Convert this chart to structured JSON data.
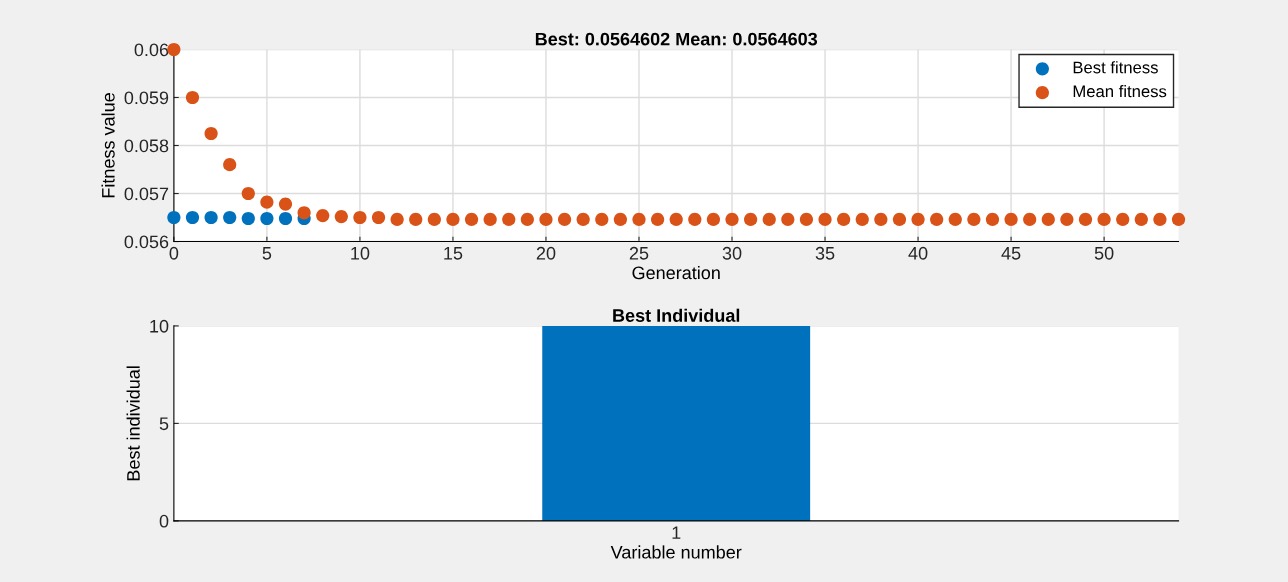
{
  "chart_data": [
    {
      "type": "scatter",
      "title": "Best: 0.0564602 Mean: 0.0564603",
      "xlabel": "Generation",
      "ylabel": "Fitness value",
      "x": [
        0,
        1,
        2,
        3,
        4,
        5,
        6,
        7,
        8,
        9,
        10,
        11,
        12,
        13,
        14,
        15,
        16,
        17,
        18,
        19,
        20,
        21,
        22,
        23,
        24,
        25,
        26,
        27,
        28,
        29,
        30,
        31,
        32,
        33,
        34,
        35,
        36,
        37,
        38,
        39,
        40,
        41,
        42,
        43,
        44,
        45,
        46,
        47,
        48,
        49,
        50,
        51,
        52,
        53,
        54
      ],
      "series": [
        {
          "name": "Best fitness",
          "color": "#0072bd",
          "values": [
            0.0565,
            0.0565,
            0.0565,
            0.0565,
            0.05648,
            0.05648,
            0.05648,
            0.05648,
            null,
            null,
            null,
            null,
            null,
            null,
            null,
            null,
            null,
            null,
            null,
            null,
            null,
            null,
            null,
            null,
            null,
            null,
            null,
            null,
            null,
            null,
            null,
            null,
            null,
            null,
            null,
            null,
            null,
            null,
            null,
            null,
            null,
            null,
            null,
            null,
            null,
            null,
            null,
            null,
            null,
            null,
            null,
            null,
            null,
            null,
            null
          ]
        },
        {
          "name": "Mean fitness",
          "color": "#d95319",
          "values": [
            0.06,
            0.059,
            0.05825,
            0.0576,
            0.057,
            0.05682,
            0.05678,
            0.0566,
            0.05654,
            0.05652,
            0.0565,
            0.0565,
            0.05646,
            0.05646,
            0.05646,
            0.05646,
            0.05646,
            0.05646,
            0.05646,
            0.05646,
            0.05646,
            0.05646,
            0.05646,
            0.05646,
            0.05646,
            0.05646,
            0.05646,
            0.05646,
            0.05646,
            0.05646,
            0.05646,
            0.05646,
            0.05646,
            0.05646,
            0.05646,
            0.05646,
            0.05646,
            0.05646,
            0.05646,
            0.05646,
            0.05646,
            0.05646,
            0.05646,
            0.05646,
            0.05646,
            0.05646,
            0.05646,
            0.05646,
            0.05646,
            0.05646,
            0.05646,
            0.05646,
            0.05646,
            0.05646,
            0.05646
          ]
        }
      ],
      "xlim": [
        0,
        54
      ],
      "xticks": [
        0,
        5,
        10,
        15,
        20,
        25,
        30,
        35,
        40,
        45,
        50
      ],
      "ylim": [
        0.056,
        0.06
      ],
      "yticks": [
        0.056,
        0.057,
        0.058,
        0.059,
        0.06
      ],
      "grid": true,
      "legend": "top right",
      "marker": "circle"
    },
    {
      "type": "bar",
      "title": "Best Individual",
      "xlabel": "Variable number",
      "ylabel": "Best individual",
      "categories": [
        "1"
      ],
      "values": [
        10
      ],
      "color": "#0072bd",
      "ylim": [
        0,
        10
      ],
      "yticks": [
        0,
        5,
        10
      ],
      "grid": "y"
    }
  ]
}
